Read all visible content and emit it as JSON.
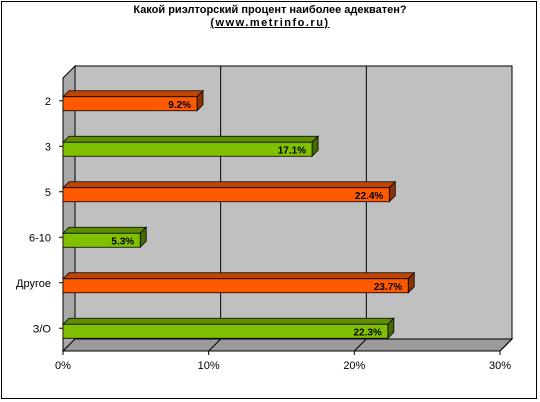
{
  "chart_data": {
    "type": "bar",
    "orientation": "horizontal",
    "title": "Какой риэлторский процент наиболее адекватен?",
    "subtitle": "(www.metrinfo.ru)",
    "categories": [
      "2",
      "3",
      "5",
      "6-10",
      "Другое",
      "З/О"
    ],
    "values": [
      9.2,
      17.1,
      22.4,
      5.3,
      23.7,
      22.3
    ],
    "data_labels": [
      "9.2%",
      "17.1%",
      "22.4%",
      "5.3%",
      "23.7%",
      "22.3%"
    ],
    "bar_colors": [
      "#ff5a00",
      "#80c000",
      "#ff5a00",
      "#80c000",
      "#ff5a00",
      "#80c000"
    ],
    "xlim": [
      0,
      30
    ],
    "x_ticks": [
      "0%",
      "10%",
      "20%",
      "30%"
    ],
    "grid": true,
    "legend": "none",
    "colors": {
      "plot_bg": "#c0c0c0",
      "grid": "#000000"
    }
  }
}
